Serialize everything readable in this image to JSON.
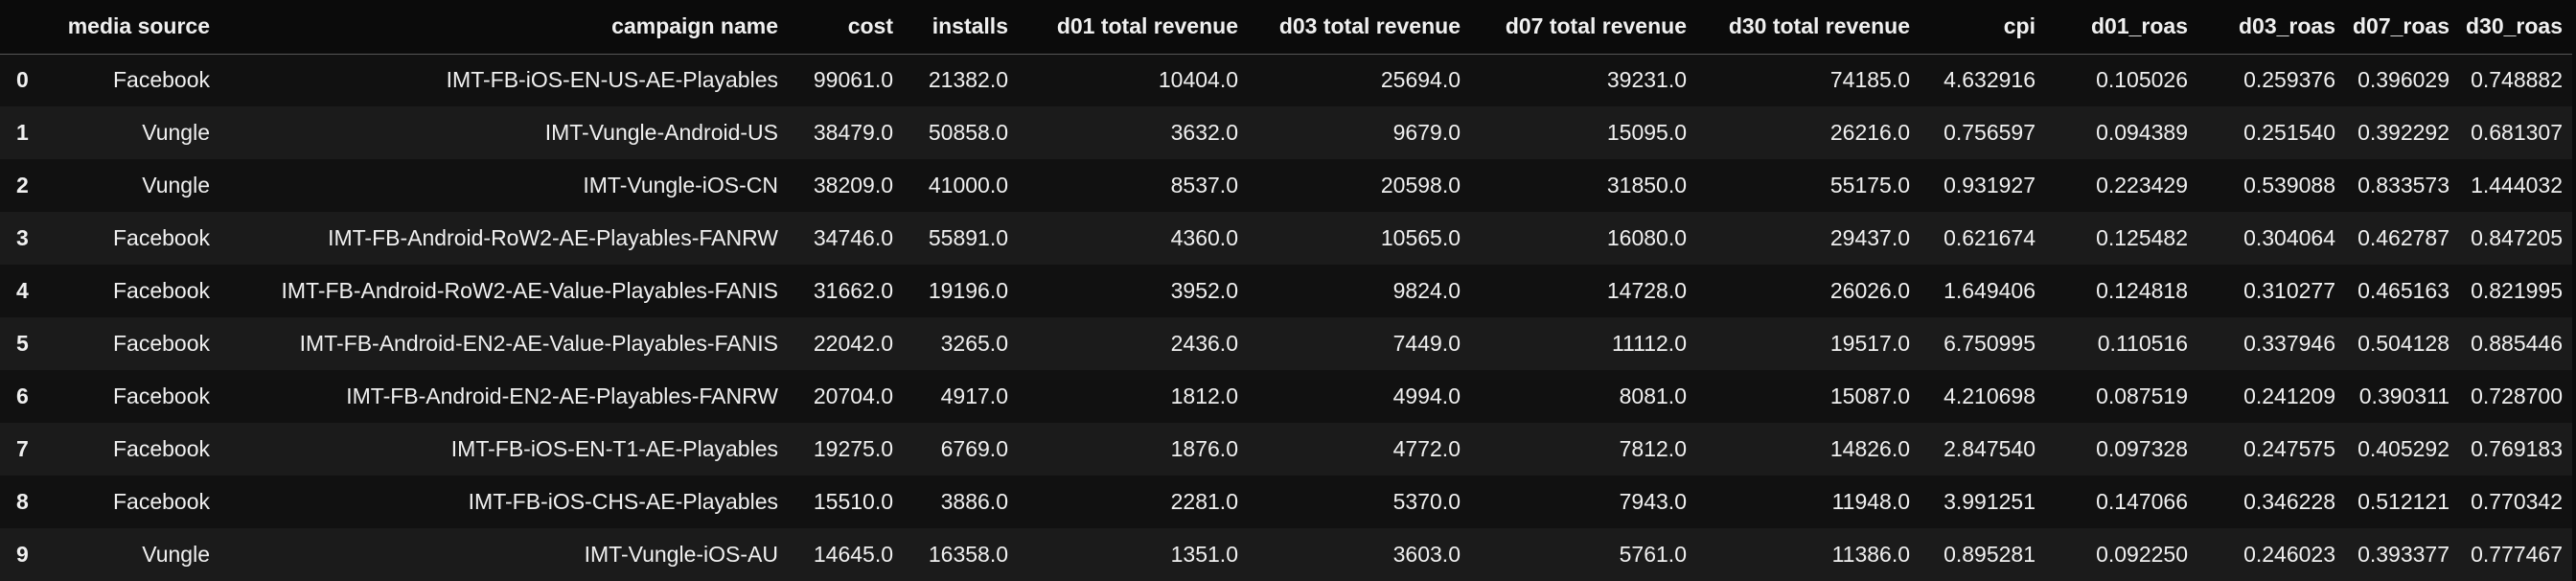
{
  "table": {
    "columns": [
      "media source",
      "campaign name",
      "cost",
      "installs",
      "d01 total revenue",
      "d03 total revenue",
      "d07 total revenue",
      "d30 total revenue",
      "cpi",
      "d01_roas",
      "d03_roas",
      "d07_roas",
      "d30_roas"
    ],
    "index": [
      "0",
      "1",
      "2",
      "3",
      "4",
      "5",
      "6",
      "7",
      "8",
      "9"
    ],
    "rows": [
      [
        "Facebook",
        "IMT-FB-iOS-EN-US-AE-Playables",
        "99061.0",
        "21382.0",
        "10404.0",
        "25694.0",
        "39231.0",
        "74185.0",
        "4.632916",
        "0.105026",
        "0.259376",
        "0.396029",
        "0.748882"
      ],
      [
        "Vungle",
        "IMT-Vungle-Android-US",
        "38479.0",
        "50858.0",
        "3632.0",
        "9679.0",
        "15095.0",
        "26216.0",
        "0.756597",
        "0.094389",
        "0.251540",
        "0.392292",
        "0.681307"
      ],
      [
        "Vungle",
        "IMT-Vungle-iOS-CN",
        "38209.0",
        "41000.0",
        "8537.0",
        "20598.0",
        "31850.0",
        "55175.0",
        "0.931927",
        "0.223429",
        "0.539088",
        "0.833573",
        "1.444032"
      ],
      [
        "Facebook",
        "IMT-FB-Android-RoW2-AE-Playables-FANRW",
        "34746.0",
        "55891.0",
        "4360.0",
        "10565.0",
        "16080.0",
        "29437.0",
        "0.621674",
        "0.125482",
        "0.304064",
        "0.462787",
        "0.847205"
      ],
      [
        "Facebook",
        "IMT-FB-Android-RoW2-AE-Value-Playables-FANIS",
        "31662.0",
        "19196.0",
        "3952.0",
        "9824.0",
        "14728.0",
        "26026.0",
        "1.649406",
        "0.124818",
        "0.310277",
        "0.465163",
        "0.821995"
      ],
      [
        "Facebook",
        "IMT-FB-Android-EN2-AE-Value-Playables-FANIS",
        "22042.0",
        "3265.0",
        "2436.0",
        "7449.0",
        "11112.0",
        "19517.0",
        "6.750995",
        "0.110516",
        "0.337946",
        "0.504128",
        "0.885446"
      ],
      [
        "Facebook",
        "IMT-FB-Android-EN2-AE-Playables-FANRW",
        "20704.0",
        "4917.0",
        "1812.0",
        "4994.0",
        "8081.0",
        "15087.0",
        "4.210698",
        "0.087519",
        "0.241209",
        "0.390311",
        "0.728700"
      ],
      [
        "Facebook",
        "IMT-FB-iOS-EN-T1-AE-Playables",
        "19275.0",
        "6769.0",
        "1876.0",
        "4772.0",
        "7812.0",
        "14826.0",
        "2.847540",
        "0.097328",
        "0.247575",
        "0.405292",
        "0.769183"
      ],
      [
        "Facebook",
        "IMT-FB-iOS-CHS-AE-Playables",
        "15510.0",
        "3886.0",
        "2281.0",
        "5370.0",
        "7943.0",
        "11948.0",
        "3.991251",
        "0.147066",
        "0.346228",
        "0.512121",
        "0.770342"
      ],
      [
        "Vungle",
        "IMT-Vungle-iOS-AU",
        "14645.0",
        "16358.0",
        "1351.0",
        "3603.0",
        "5761.0",
        "11386.0",
        "0.895281",
        "0.092250",
        "0.246023",
        "0.393377",
        "0.777467"
      ]
    ]
  }
}
